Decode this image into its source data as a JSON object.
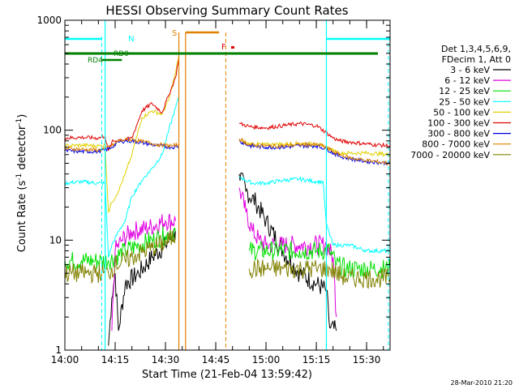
{
  "chart_data": {
    "type": "line",
    "title": "HESSI Observing Summary Count Rates",
    "xlabel": "Start Time (21-Feb-04 13:59:42)",
    "ylabel_main": "Count Rate (s",
    "ylabel_sup1": "-1",
    "ylabel_mid": " detector",
    "ylabel_sup2": "-1",
    "ylabel_end": ")",
    "y_scale": "log",
    "ylim": [
      1,
      1000
    ],
    "xlim": [
      "14:00",
      "15:37"
    ],
    "x_ticks": [
      "14:00",
      "14:15",
      "14:30",
      "14:45",
      "15:00",
      "15:15",
      "15:30"
    ],
    "y_ticks": [
      {
        "value": 1,
        "label": "1"
      },
      {
        "value": 10,
        "label": "10"
      },
      {
        "value": 100,
        "label": "100"
      },
      {
        "value": 1000,
        "label": "1000"
      }
    ],
    "legend_header": [
      "Det 1,3,4,5,6,9,",
      "FDecim 1, Att 0"
    ],
    "legend_placement": "right",
    "series": [
      {
        "name": "3 - 6 keV",
        "color": "#000000",
        "x": [
          "14:00",
          "14:12",
          "14:13",
          "14:14",
          "14:15",
          "14:16",
          "14:18",
          "14:22",
          "14:26",
          "14:30",
          "14:33",
          "14:36",
          "14:51",
          "14:52",
          "14:54",
          "14:57",
          "15:00",
          "15:05",
          "15:10",
          "15:15",
          "15:18",
          "15:19",
          "15:21",
          "15:22"
        ],
        "y": [
          null,
          null,
          1.1,
          3,
          5,
          1.5,
          4,
          5,
          7,
          9,
          12,
          null,
          null,
          40,
          28,
          22,
          15,
          8,
          5,
          4,
          3.5,
          1.6,
          1.5,
          null
        ]
      },
      {
        "name": "6 - 12 keV",
        "color": "#e000e0",
        "x": [
          "14:00",
          "14:12",
          "14:14",
          "14:15",
          "14:17",
          "14:20",
          "14:25",
          "14:30",
          "14:33",
          "14:36",
          "14:51",
          "14:52",
          "14:54",
          "14:56",
          "14:58",
          "15:00",
          "15:10",
          "15:18",
          "15:20",
          "15:21",
          "15:22"
        ],
        "y": [
          null,
          null,
          1.5,
          8,
          10,
          12,
          13,
          15,
          15,
          null,
          null,
          30,
          18,
          12,
          10,
          9,
          9,
          9,
          7,
          2,
          null
        ]
      },
      {
        "name": "12 - 25 keV",
        "color": "#00e000",
        "x": [
          "14:00",
          "14:05",
          "14:09",
          "14:11",
          "14:13",
          "14:15",
          "14:18",
          "14:22",
          "14:26",
          "14:30",
          "14:33",
          "14:36",
          "14:51",
          "14:55",
          "15:00",
          "15:05",
          "15:10",
          "15:15",
          "15:19",
          "15:21",
          "15:24",
          "15:28",
          "15:32",
          "15:37"
        ],
        "y": [
          6.5,
          6.5,
          6.5,
          6.5,
          6.5,
          7,
          8,
          9,
          10,
          11,
          12,
          null,
          null,
          8,
          8,
          8,
          8,
          8,
          8,
          6,
          5.5,
          5.5,
          5.5,
          5.5
        ]
      },
      {
        "name": "25 - 50 keV",
        "color": "#00ffff",
        "x": [
          "14:00",
          "14:05",
          "14:10",
          "14:12",
          "14:13",
          "14:14",
          "14:16",
          "14:18",
          "14:20",
          "14:23",
          "14:26",
          "14:29",
          "14:31",
          "14:33",
          "14:34",
          "14:36",
          "14:51",
          "14:52",
          "14:54",
          "14:56",
          "15:00",
          "15:05",
          "15:10",
          "15:15",
          "15:17",
          "15:18",
          "15:20",
          "15:22",
          "15:25",
          "15:30",
          "15:37"
        ],
        "y": [
          33,
          34,
          33,
          33,
          7,
          9,
          12,
          15,
          25,
          35,
          45,
          60,
          100,
          160,
          200,
          null,
          null,
          38,
          35,
          33,
          33,
          35,
          36,
          34,
          34,
          14,
          9,
          9,
          9,
          8,
          8
        ]
      },
      {
        "name": "50 - 100 keV",
        "color": "#e0d000",
        "x": [
          "14:00",
          "14:05",
          "14:10",
          "14:12",
          "14:13",
          "14:14",
          "14:16",
          "14:18",
          "14:20",
          "14:23",
          "14:26",
          "14:29",
          "14:31",
          "14:33",
          "14:34",
          "14:36",
          "14:51",
          "14:52",
          "14:55",
          "15:00",
          "15:05",
          "15:10",
          "15:15",
          "15:18",
          "15:20",
          "15:22",
          "15:25",
          "15:30",
          "15:37"
        ],
        "y": [
          72,
          73,
          72,
          73,
          18,
          22,
          28,
          40,
          60,
          130,
          150,
          140,
          190,
          330,
          480,
          null,
          null,
          80,
          75,
          74,
          75,
          76,
          75,
          70,
          65,
          62,
          62,
          62,
          60
        ]
      },
      {
        "name": "100 - 300 keV",
        "color": "#e00000",
        "x": [
          "14:00",
          "14:05",
          "14:10",
          "14:12",
          "14:13",
          "14:14",
          "14:16",
          "14:18",
          "14:20",
          "14:23",
          "14:26",
          "14:29",
          "14:31",
          "14:33",
          "14:34",
          "14:36",
          "14:51",
          "14:52",
          "14:55",
          "15:00",
          "15:05",
          "15:10",
          "15:15",
          "15:18",
          "15:20",
          "15:22",
          "15:25",
          "15:30",
          "15:37"
        ],
        "y": [
          85,
          86,
          85,
          88,
          65,
          78,
          82,
          82,
          85,
          150,
          175,
          145,
          210,
          300,
          460,
          null,
          null,
          115,
          108,
          105,
          110,
          115,
          110,
          95,
          85,
          80,
          78,
          75,
          72
        ]
      },
      {
        "name": "300 - 800 keV",
        "color": "#0000e0",
        "x": [
          "14:00",
          "14:05",
          "14:10",
          "14:12",
          "14:14",
          "14:16",
          "14:18",
          "14:20",
          "14:24",
          "14:28",
          "14:32",
          "14:34",
          "14:36",
          "14:51",
          "14:52",
          "14:55",
          "15:00",
          "15:05",
          "15:10",
          "15:15",
          "15:18",
          "15:20",
          "15:22",
          "15:25",
          "15:30",
          "15:37"
        ],
        "y": [
          65,
          64,
          64,
          66,
          70,
          78,
          80,
          80,
          76,
          72,
          70,
          72,
          null,
          null,
          80,
          72,
          70,
          70,
          72,
          72,
          68,
          62,
          58,
          55,
          52,
          50
        ]
      },
      {
        "name": "800 - 7000 keV",
        "color": "#e08000",
        "x": [
          "14:00",
          "14:05",
          "14:10",
          "14:12",
          "14:14",
          "14:16",
          "14:18",
          "14:20",
          "14:24",
          "14:28",
          "14:32",
          "14:34",
          "14:36",
          "14:51",
          "14:52",
          "14:55",
          "15:00",
          "15:05",
          "15:10",
          "15:15",
          "15:18",
          "15:20",
          "15:22",
          "15:25",
          "15:30",
          "15:37"
        ],
        "y": [
          68,
          67,
          66,
          68,
          72,
          80,
          82,
          82,
          78,
          74,
          72,
          74,
          null,
          null,
          84,
          74,
          72,
          72,
          74,
          74,
          70,
          64,
          60,
          56,
          53,
          50
        ]
      },
      {
        "name": "7000 - 20000 keV",
        "color": "#808000",
        "x": [
          "14:00",
          "14:05",
          "14:09",
          "14:11",
          "14:13",
          "14:15",
          "14:18",
          "14:22",
          "14:26",
          "14:30",
          "14:33",
          "14:36",
          "14:51",
          "14:55",
          "15:00",
          "15:05",
          "15:10",
          "15:15",
          "15:19",
          "15:21",
          "15:24",
          "15:28",
          "15:32",
          "15:37"
        ],
        "y": [
          5,
          5,
          5,
          5,
          5,
          6,
          6.5,
          7.5,
          8.5,
          9.5,
          11,
          null,
          null,
          5.5,
          5.5,
          5.5,
          5.5,
          5.5,
          5.5,
          5,
          4.5,
          4.5,
          4.5,
          4.5
        ]
      }
    ],
    "annotations": {
      "N": {
        "label": "N",
        "color": "#00ffff",
        "intervals": [
          [
            "14:00",
            "14:11"
          ],
          [
            "15:18",
            "15:37"
          ]
        ],
        "dashed_at": [
          "14:11",
          "15:37"
        ]
      },
      "S": {
        "label": "S",
        "color": "#e08000",
        "intervals": [
          [
            "14:36",
            "14:46"
          ]
        ]
      },
      "F": {
        "label": "F",
        "color": "#e00000",
        "at": [
          "14:48"
        ]
      },
      "RD0": {
        "label": "RD0",
        "color": "#008000",
        "intervals": [
          [
            "14:00",
            "15:37"
          ]
        ]
      },
      "RD4": {
        "label": "RD4",
        "color": "#008000",
        "intervals": [
          [
            "14:11",
            "14:17"
          ]
        ]
      },
      "cyan_vlines": [
        "14:12",
        "15:18"
      ],
      "orange_vlines": [
        "14:34",
        "14:36"
      ],
      "orange_dashed_vline": "14:48",
      "cyan_dashed_vlines": [
        "14:11",
        "15:37"
      ]
    },
    "grid": false
  },
  "footer": {
    "timestamp": "28-Mar-2010 21:20"
  }
}
